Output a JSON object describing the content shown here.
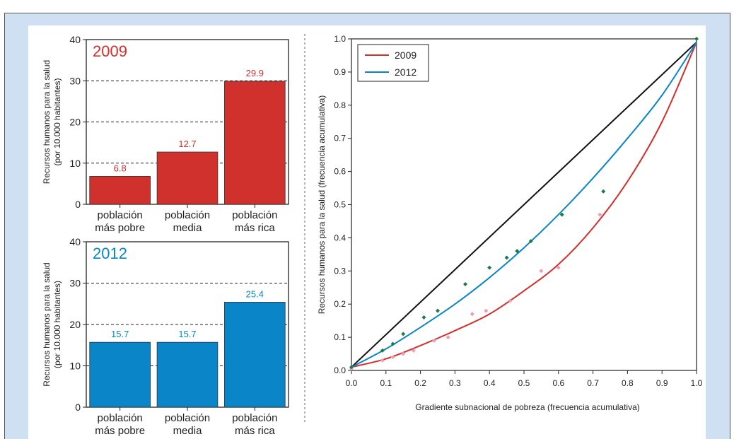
{
  "colors": {
    "red": "#d0312d",
    "blue": "#0a85c8",
    "green_points": "#1e7b3f",
    "pink_points": "#f19bb8",
    "black": "#111111"
  },
  "chart_data": [
    {
      "type": "bar",
      "title": "2009",
      "ylabel_line1": "Recursos humanos para la salud",
      "ylabel_line2": "(por 10.000 habitantes)",
      "categories": [
        [
          "población",
          "más pobre"
        ],
        [
          "población",
          "media"
        ],
        [
          "población",
          "más rica"
        ]
      ],
      "values": [
        6.8,
        12.7,
        29.9
      ],
      "value_labels": [
        "6.8",
        "12.7",
        "29.9"
      ],
      "ylim": [
        0,
        40
      ],
      "yticks": [
        0,
        10,
        20,
        30,
        40
      ],
      "dashed_grid": [
        10,
        20,
        30
      ],
      "color": "#d0312d"
    },
    {
      "type": "bar",
      "title": "2012",
      "ylabel_line1": "Recursos humanos para la salud",
      "ylabel_line2": "(por 10.000 habitantes)",
      "categories": [
        [
          "población",
          "más pobre"
        ],
        [
          "población",
          "media"
        ],
        [
          "población",
          "más rica"
        ]
      ],
      "values": [
        15.7,
        15.7,
        25.4
      ],
      "value_labels": [
        "15.7",
        "15.7",
        "25.4"
      ],
      "ylim": [
        0,
        40
      ],
      "yticks": [
        0,
        10,
        20,
        30,
        40
      ],
      "dashed_grid": [
        10,
        20,
        30
      ],
      "color": "#0a85c8"
    },
    {
      "type": "line",
      "xlabel": "Gradiente subnacional de pobreza (frecuencia acumulativa)",
      "ylabel": "Recursos humanos para la salud (frecuencia acumulativa)",
      "xlim": [
        0,
        1
      ],
      "ylim": [
        0,
        1
      ],
      "xticks": [
        0.0,
        0.1,
        0.2,
        0.3,
        0.4,
        0.5,
        0.6,
        0.7,
        0.8,
        0.9,
        1.0
      ],
      "yticks": [
        0.0,
        0.1,
        0.2,
        0.3,
        0.4,
        0.5,
        0.6,
        0.7,
        0.8,
        0.9,
        1.0
      ],
      "tick_labels": [
        "0.0",
        "0.1",
        "0.2",
        "0.3",
        "0.4",
        "0.5",
        "0.6",
        "0.7",
        "0.8",
        "0.9",
        "1.0"
      ],
      "legend_position": "top-left",
      "equality_line": {
        "x": [
          0,
          1
        ],
        "y": [
          0.01,
          0.99
        ]
      },
      "series": [
        {
          "name": "2009",
          "color": "#d0312d",
          "curve_x": [
            0,
            0.1,
            0.2,
            0.3,
            0.4,
            0.5,
            0.6,
            0.7,
            0.8,
            0.9,
            1.0
          ],
          "curve_y": [
            0.01,
            0.035,
            0.075,
            0.12,
            0.17,
            0.24,
            0.32,
            0.43,
            0.57,
            0.75,
            0.99
          ],
          "points_x": [
            0.0,
            0.09,
            0.12,
            0.15,
            0.18,
            0.24,
            0.28,
            0.35,
            0.39,
            0.46,
            0.55,
            0.6,
            0.72
          ],
          "points_y": [
            0.005,
            0.03,
            0.04,
            0.05,
            0.06,
            0.09,
            0.1,
            0.17,
            0.18,
            0.21,
            0.3,
            0.31,
            0.47
          ]
        },
        {
          "name": "2012",
          "color": "#0a85c8",
          "curve_x": [
            0,
            0.1,
            0.2,
            0.3,
            0.4,
            0.5,
            0.6,
            0.7,
            0.8,
            0.9,
            1.0
          ],
          "curve_y": [
            0.01,
            0.065,
            0.13,
            0.2,
            0.28,
            0.37,
            0.47,
            0.58,
            0.7,
            0.83,
            0.99
          ],
          "points_x": [
            0.0,
            0.09,
            0.12,
            0.15,
            0.21,
            0.25,
            0.33,
            0.4,
            0.45,
            0.48,
            0.52,
            0.61,
            0.73,
            1.0
          ],
          "points_y": [
            0.01,
            0.06,
            0.08,
            0.11,
            0.16,
            0.18,
            0.26,
            0.31,
            0.34,
            0.36,
            0.39,
            0.47,
            0.54,
            1.0
          ]
        }
      ]
    }
  ]
}
